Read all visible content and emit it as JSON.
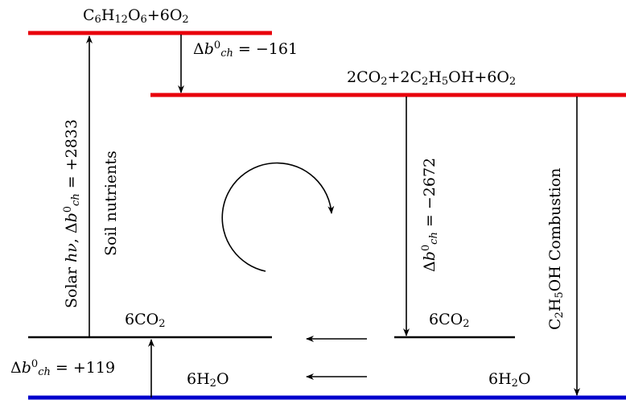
{
  "levels": {
    "glucose": {
      "label": "C6H12O6+6O2",
      "color": "#e8000b"
    },
    "ethanol": {
      "label": "2CO2+2C2H5OH+6O2",
      "color": "#e8000b"
    },
    "co2_left": {
      "label": "6CO2"
    },
    "co2_right": {
      "label": "6CO2"
    },
    "water_left": {
      "label": "6H2O"
    },
    "water_right": {
      "label": "6H2O"
    },
    "base_color": "#0000cc"
  },
  "transitions": {
    "photosynthesis": {
      "label": "Solar hν, Δb0ch = +2833"
    },
    "soil": {
      "label": "Soil nutrients"
    },
    "fermentation": {
      "label": "Δb0ch = −161"
    },
    "ethanol_to_co2": {
      "label": "Δb0ch = −2672"
    },
    "combustion": {
      "label": "C2H5OH Combustion"
    },
    "water_up": {
      "label": "Δb0ch = +119"
    }
  }
}
